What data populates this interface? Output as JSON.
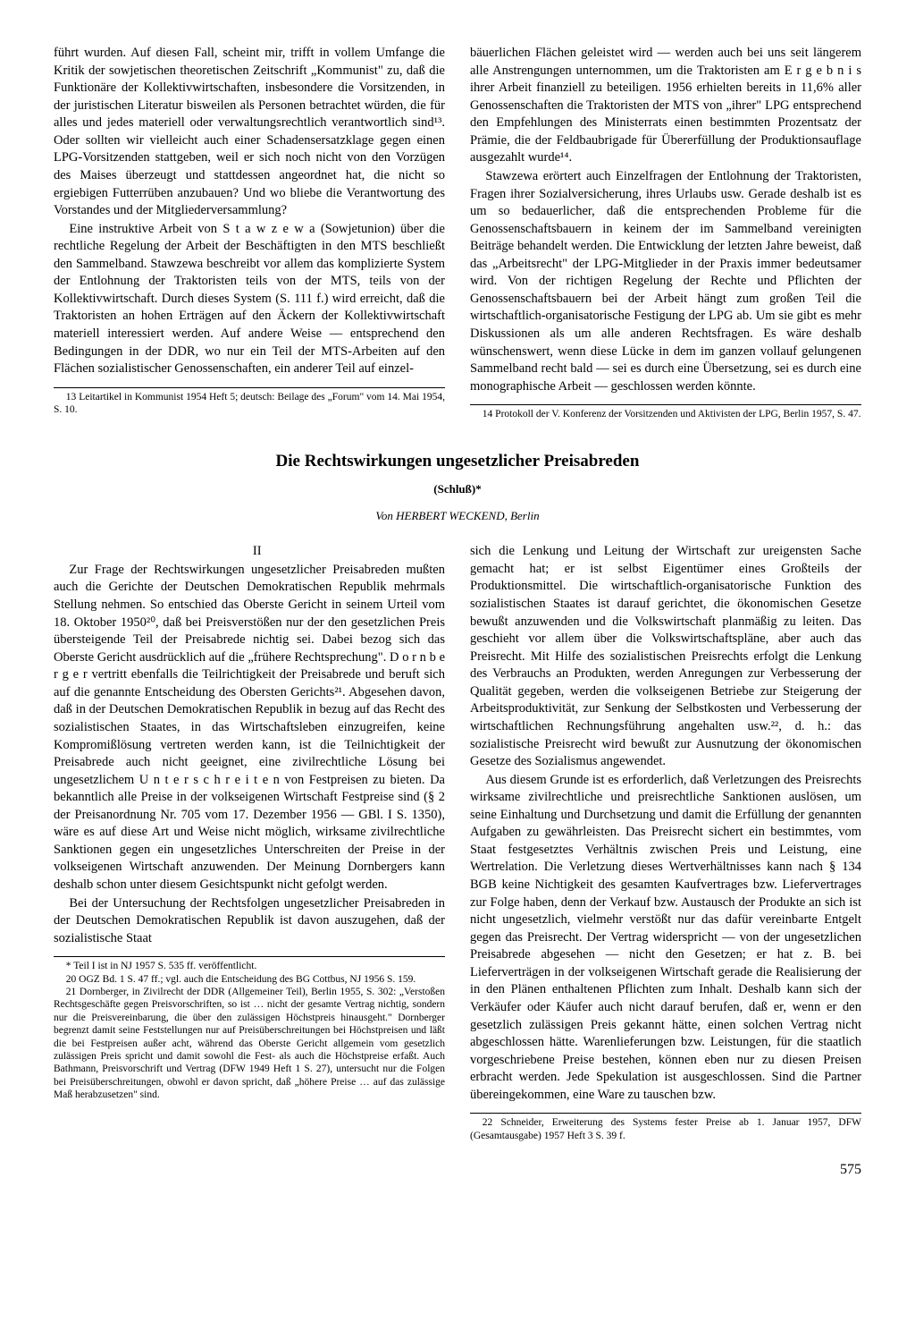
{
  "section1": {
    "left_col": {
      "p1": "führt wurden. Auf diesen Fall, scheint mir, trifft in vollem Umfange die Kritik der sowjetischen theoretischen Zeitschrift „Kommunist\" zu, daß die Funktionäre der Kollektivwirtschaften, insbesondere die Vorsitzenden, in der juristischen Literatur bisweilen als Personen betrachtet würden, die für alles und jedes materiell oder verwaltungsrechtlich verantwortlich sind¹³. Oder sollten wir vielleicht auch einer Schadensersatzklage gegen einen LPG-Vorsitzenden stattgeben, weil er sich noch nicht von den Vorzügen des Maises überzeugt und stattdessen angeordnet hat, die nicht so ergiebigen Futterrüben anzubauen? Und wo bliebe die Verantwortung des Vorstandes und der Mitgliederversammlung?",
      "p2": "Eine instruktive Arbeit von S t a w z e w a (Sowjetunion) über die rechtliche Regelung der Arbeit der Beschäftigten in den MTS beschließt den Sammelband. Stawzewa beschreibt vor allem das komplizierte System der Entlohnung der Traktoristen teils von der MTS, teils von der Kollektivwirtschaft. Durch dieses System (S. 111 f.) wird erreicht, daß die Traktoristen an hohen Erträgen auf den Äckern der Kollektivwirtschaft materiell interessiert werden. Auf andere Weise — entsprechend den Bedingungen in der DDR, wo nur ein Teil der MTS-Arbeiten auf den Flächen sozialistischer Genossenschaften, ein anderer Teil auf einzel-",
      "fn13": "13 Leitartikel in Kommunist 1954 Heft 5; deutsch: Beilage des „Forum\" vom 14. Mai 1954, S. 10."
    },
    "right_col": {
      "p1": "bäuerlichen Flächen geleistet wird — werden auch bei uns seit längerem alle Anstrengungen unternommen, um die Traktoristen am E r g e b n i s ihrer Arbeit finanziell zu beteiligen. 1956 erhielten bereits in 11,6% aller Genossenschaften die Traktoristen der MTS von „ihrer\" LPG entsprechend den Empfehlungen des Ministerrats einen bestimmten Prozentsatz der Prämie, die der Feldbaubrigade für Übererfüllung der Produktionsauflage ausgezahlt wurde¹⁴.",
      "p2": "Stawzewa erörtert auch Einzelfragen der Entlohnung der Traktoristen, Fragen ihrer Sozialversicherung, ihres Urlaubs usw. Gerade deshalb ist es um so bedauerlicher, daß die entsprechenden Probleme für die Genossenschaftsbauern in keinem der im Sammelband vereinigten Beiträge behandelt werden. Die Entwicklung der letzten Jahre beweist, daß das „Arbeitsrecht\" der LPG-Mitglieder in der Praxis immer bedeutsamer wird. Von der richtigen Regelung der Rechte und Pflichten der Genossenschaftsbauern bei der Arbeit hängt zum großen Teil die wirtschaftlich-organisatorische Festigung der LPG ab. Um sie gibt es mehr Diskussionen als um alle anderen Rechtsfragen. Es wäre deshalb wünschenswert, wenn diese Lücke in dem im ganzen vollauf gelungenen Sammelband recht bald — sei es durch eine Übersetzung, sei es durch eine monographische Arbeit — geschlossen werden könnte.",
      "fn14": "14 Protokoll der V. Konferenz der Vorsitzenden und Aktivisten der LPG, Berlin 1957, S. 47."
    }
  },
  "article": {
    "title": "Die Rechtswirkungen ungesetzlicher Preisabreden",
    "subtitle": "(Schluß)*",
    "author": "Von HERBERT WECKEND, Berlin",
    "section_num": "II"
  },
  "section2": {
    "left_col": {
      "p1": "Zur Frage der Rechtswirkungen ungesetzlicher Preisabreden mußten auch die Gerichte der Deutschen Demokratischen Republik mehrmals Stellung nehmen. So entschied das Oberste Gericht in seinem Urteil vom 18. Oktober 1950²⁰, daß bei Preisverstößen nur der den gesetzlichen Preis übersteigende Teil der Preisabrede nichtig sei. Dabei bezog sich das Oberste Gericht ausdrücklich auf die „frühere Rechtsprechung\". D o r n b e r g e r vertritt ebenfalls die Teilrichtigkeit der Preisabrede und beruft sich auf die genannte Entscheidung des Obersten Gerichts²¹. Abgesehen davon, daß in der Deutschen Demokratischen Republik in bezug auf das Recht des sozialistischen Staates, in das Wirtschaftsleben einzugreifen, keine Kompromißlösung vertreten werden kann, ist die Teilnichtigkeit der Preisabrede auch nicht geeignet, eine zivilrechtliche Lösung bei ungesetzlichem U n t e r s c h r e i t e n von Festpreisen zu bieten. Da bekanntlich alle Preise in der volkseigenen Wirtschaft Festpreise sind (§ 2 der Preisanordnung Nr. 705 vom 17. Dezember 1956 — GBl. I S. 1350), wäre es auf diese Art und Weise nicht möglich, wirksame zivilrechtliche Sanktionen gegen ein ungesetzliches Unterschreiten der Preise in der volkseigenen Wirtschaft anzuwenden. Der Meinung Dornbergers kann deshalb schon unter diesem Gesichtspunkt nicht gefolgt werden.",
      "p2": "Bei der Untersuchung der Rechtsfolgen ungesetzlicher Preisabreden in der Deutschen Demokratischen Republik ist davon auszugehen, daß der sozialistische Staat",
      "fn_star": "* Teil I ist in NJ 1957 S. 535 ff. veröffentlicht.",
      "fn20": "20 OGZ Bd. 1 S. 47 ff.; vgl. auch die Entscheidung des BG Cottbus, NJ 1956 S. 159.",
      "fn21": "21 Dornberger, in Zivilrecht der DDR (Allgemeiner Teil), Berlin 1955, S. 302: „Verstoßen Rechtsgeschäfte gegen Preisvorschriften, so ist … nicht der gesamte Vertrag nichtig, sondern nur die Preisvereinbarung, die über den zulässigen Höchstpreis hinausgeht.\" Dornberger begrenzt damit seine Feststellungen nur auf Preisüberschreitungen bei Höchstpreisen und läßt die bei Festpreisen außer acht, während das Oberste Gericht allgemein vom gesetzlich zulässigen Preis spricht und damit sowohl die Fest- als auch die Höchstpreise erfaßt. Auch Bathmann, Preisvorschrift und Vertrag (DFW 1949 Heft 1 S. 27), untersucht nur die Folgen bei Preisüberschreitungen, obwohl er davon spricht, daß „höhere Preise … auf das zulässige Maß herabzusetzen\" sind."
    },
    "right_col": {
      "p1": "sich die Lenkung und Leitung der Wirtschaft zur ureigensten Sache gemacht hat; er ist selbst Eigentümer eines Großteils der Produktionsmittel. Die wirtschaftlich-organisatorische Funktion des sozialistischen Staates ist darauf gerichtet, die ökonomischen Gesetze bewußt anzuwenden und die Volkswirtschaft planmäßig zu leiten. Das geschieht vor allem über die Volkswirtschaftspläne, aber auch das Preisrecht. Mit Hilfe des sozialistischen Preisrechts erfolgt die Lenkung des Verbrauchs an Produkten, werden Anregungen zur Verbesserung der Qualität gegeben, werden die volkseigenen Betriebe zur Steigerung der Arbeitsproduktivität, zur Senkung der Selbstkosten und Verbesserung der wirtschaftlichen Rechnungsführung angehalten usw.²², d. h.: das sozialistische Preisrecht wird bewußt zur Ausnutzung der ökonomischen Gesetze des Sozialismus angewendet.",
      "p2": "Aus diesem Grunde ist es erforderlich, daß Verletzungen des Preisrechts wirksame zivilrechtliche und preisrechtliche Sanktionen auslösen, um seine Einhaltung und Durchsetzung und damit die Erfüllung der genannten Aufgaben zu gewährleisten. Das Preisrecht sichert ein bestimmtes, vom Staat festgesetztes Verhältnis zwischen Preis und Leistung, eine Wertrelation. Die Verletzung dieses Wertverhältnisses kann nach § 134 BGB keine Nichtigkeit des gesamten Kaufvertrages bzw. Liefervertrages zur Folge haben, denn der Verkauf bzw. Austausch der Produkte an sich ist nicht ungesetzlich, vielmehr verstößt nur das dafür vereinbarte Entgelt gegen das Preisrecht. Der Vertrag widerspricht — von der ungesetzlichen Preisabrede abgesehen — nicht den Gesetzen; er hat z. B. bei Lieferverträgen in der volkseigenen Wirtschaft gerade die Realisierung der in den Plänen enthaltenen Pflichten zum Inhalt. Deshalb kann sich der Verkäufer oder Käufer auch nicht darauf berufen, daß er, wenn er den gesetzlich zulässigen Preis gekannt hätte, einen solchen Vertrag nicht abgeschlossen hätte. Warenlieferungen bzw. Leistungen, für die staatlich vorgeschriebene Preise bestehen, können eben nur zu diesen Preisen erbracht werden. Jede Spekulation ist ausgeschlossen. Sind die Partner übereingekommen, eine Ware zu tauschen bzw.",
      "fn22": "22 Schneider, Erweiterung des Systems fester Preise ab 1. Januar 1957, DFW (Gesamtausgabe) 1957 Heft 3 S. 39 f."
    }
  },
  "page_number": "575"
}
